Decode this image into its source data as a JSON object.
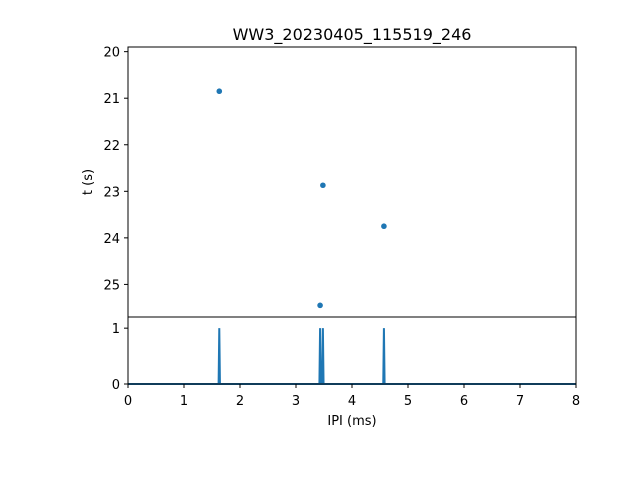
{
  "chart_data": [
    {
      "type": "scatter",
      "title": "WW3_20230405_115519_246",
      "xlabel": "",
      "ylabel": "t (s)",
      "y_inverted": true,
      "xlim": [
        0,
        8
      ],
      "ylim": [
        25.7,
        19.9
      ],
      "yticks": [
        "20",
        "21",
        "22",
        "23",
        "24",
        "25"
      ],
      "grid": false,
      "color": "#1f77b4",
      "points": [
        {
          "x": 1.63,
          "y": 20.85
        },
        {
          "x": 3.48,
          "y": 22.87
        },
        {
          "x": 4.57,
          "y": 23.75
        },
        {
          "x": 3.43,
          "y": 25.45
        }
      ]
    },
    {
      "type": "line",
      "title": "",
      "xlabel": "IPI (ms)",
      "ylabel": "",
      "xlim": [
        0,
        8
      ],
      "ylim": [
        0,
        1.2
      ],
      "xticks": [
        "0",
        "1",
        "2",
        "3",
        "4",
        "5",
        "6",
        "7",
        "8"
      ],
      "yticks": [
        "0",
        "1"
      ],
      "grid": false,
      "color": "#1f77b4",
      "spikes": [
        {
          "x": 1.63,
          "y": 1
        },
        {
          "x": 3.43,
          "y": 1
        },
        {
          "x": 3.48,
          "y": 1
        },
        {
          "x": 4.57,
          "y": 1
        }
      ]
    }
  ]
}
